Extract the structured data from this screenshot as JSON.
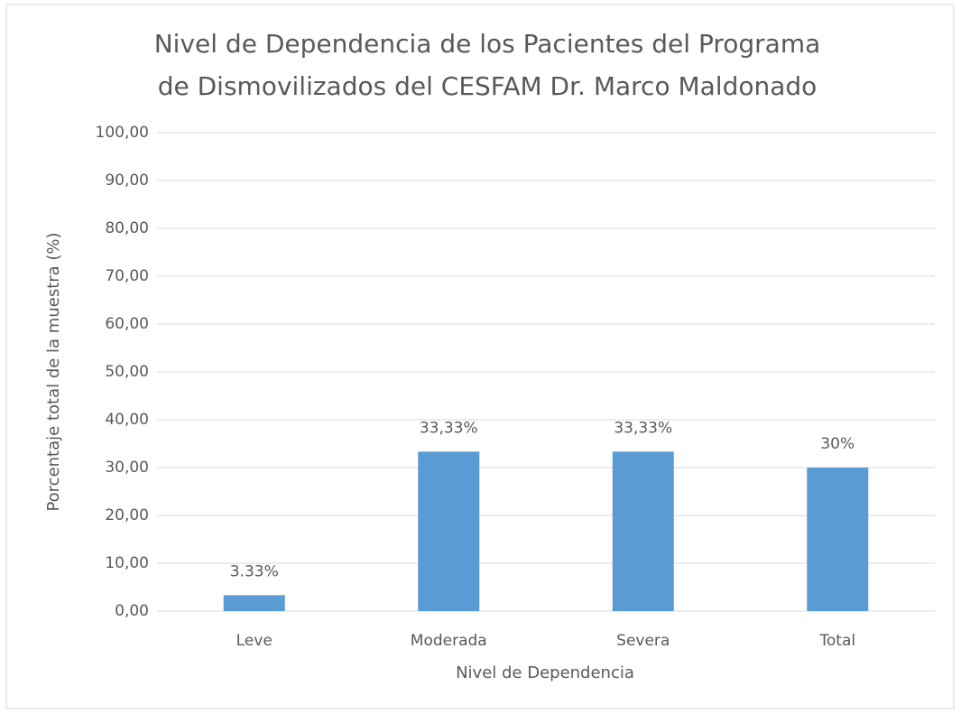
{
  "chart_data": {
    "type": "bar",
    "title": [
      "Nivel de Dependencia de los Pacientes del Programa",
      "de Dismovilizados del CESFAM Dr. Marco Maldonado"
    ],
    "xlabel": "Nivel de Dependencia",
    "ylabel": "Porcentaje total de la muestra (%)",
    "categories": [
      "Leve",
      "Moderada",
      "Severa",
      "Total"
    ],
    "values": [
      3.33,
      33.33,
      33.33,
      30
    ],
    "value_labels": [
      "3.33%",
      "33,33%",
      "33,33%",
      "30%"
    ],
    "color": "#5b9bd5",
    "ylim": [
      0,
      100
    ],
    "yticks": [
      {
        "value": 0,
        "label": "0,00"
      },
      {
        "value": 10,
        "label": "10,00"
      },
      {
        "value": 20,
        "label": "20,00"
      },
      {
        "value": 30,
        "label": "30,00"
      },
      {
        "value": 40,
        "label": "40,00"
      },
      {
        "value": 50,
        "label": "50,00"
      },
      {
        "value": 60,
        "label": "60,00"
      },
      {
        "value": 70,
        "label": "70,00"
      },
      {
        "value": 80,
        "label": "80,00"
      },
      {
        "value": 90,
        "label": "90,00"
      },
      {
        "value": 100,
        "label": "100,00"
      }
    ],
    "grid": true
  }
}
